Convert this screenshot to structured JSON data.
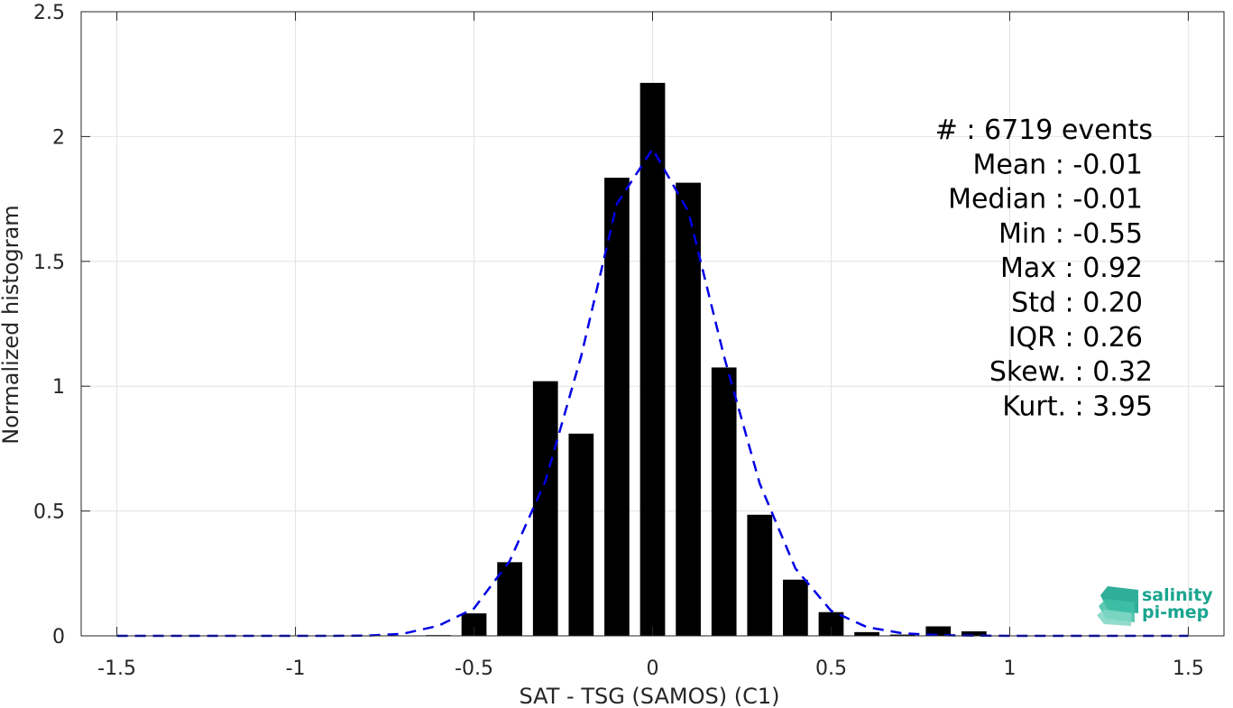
{
  "chart_data": {
    "type": "bar",
    "xlabel": "SAT - TSG (SAMOS) (C1)",
    "ylabel": "Normalized histogram",
    "xlim": [
      -1.6,
      1.6
    ],
    "ylim": [
      0,
      2.5
    ],
    "xticks": [
      -1.5,
      -1,
      -0.5,
      0,
      0.5,
      1,
      1.5
    ],
    "xtick_labels": [
      "-1.5",
      "-1",
      "-0.5",
      "0",
      "0.5",
      "1",
      "1.5"
    ],
    "yticks": [
      0,
      0.5,
      1,
      1.5,
      2,
      2.5
    ],
    "ytick_labels": [
      "0",
      "0.5",
      "1",
      "1.5",
      "2",
      "2.5"
    ],
    "grid": true,
    "bar_width": 0.07,
    "bars": [
      {
        "x": -0.6,
        "y": 0.003
      },
      {
        "x": -0.5,
        "y": 0.09
      },
      {
        "x": -0.4,
        "y": 0.295
      },
      {
        "x": -0.3,
        "y": 1.02
      },
      {
        "x": -0.2,
        "y": 0.81
      },
      {
        "x": -0.1,
        "y": 1.835
      },
      {
        "x": 0.0,
        "y": 2.215
      },
      {
        "x": 0.1,
        "y": 1.815
      },
      {
        "x": 0.2,
        "y": 1.075
      },
      {
        "x": 0.3,
        "y": 0.485
      },
      {
        "x": 0.4,
        "y": 0.225
      },
      {
        "x": 0.5,
        "y": 0.095
      },
      {
        "x": 0.6,
        "y": 0.015
      },
      {
        "x": 0.7,
        "y": 0.005
      },
      {
        "x": 0.8,
        "y": 0.038
      },
      {
        "x": 0.9,
        "y": 0.018
      }
    ],
    "bar_color": "#000000",
    "fit_curve": {
      "style": "dashed",
      "color": "#0000e6",
      "x": [
        -1.5,
        -1.4,
        -1.3,
        -1.2,
        -1.1,
        -1.0,
        -0.9,
        -0.8,
        -0.7,
        -0.6,
        -0.5,
        -0.4,
        -0.3,
        -0.2,
        -0.1,
        0.0,
        0.1,
        0.2,
        0.3,
        0.4,
        0.5,
        0.6,
        0.7,
        0.8,
        0.9,
        1.0,
        1.1,
        1.2,
        1.3,
        1.4,
        1.5
      ],
      "y": [
        0,
        0,
        0,
        0,
        0,
        0,
        0,
        0.001,
        0.008,
        0.04,
        0.11,
        0.3,
        0.62,
        1.12,
        1.73,
        1.95,
        1.7,
        1.12,
        0.61,
        0.27,
        0.1,
        0.035,
        0.01,
        0.003,
        0.001,
        0,
        0,
        0,
        0,
        0,
        0
      ]
    },
    "stats": [
      {
        "label": "#  : 6719 events"
      },
      {
        "label": "Mean : -0.01"
      },
      {
        "label": "Median : -0.01"
      },
      {
        "label": "Min : -0.55"
      },
      {
        "label": "Max : 0.92"
      },
      {
        "label": "Std : 0.20"
      },
      {
        "label": "IQR : 0.26"
      },
      {
        "label": "Skew. : 0.32"
      },
      {
        "label": "Kurt. : 3.95"
      }
    ]
  },
  "logo": {
    "line1": "salinity",
    "line2": "pi-mep",
    "color": "#1aa58f"
  }
}
